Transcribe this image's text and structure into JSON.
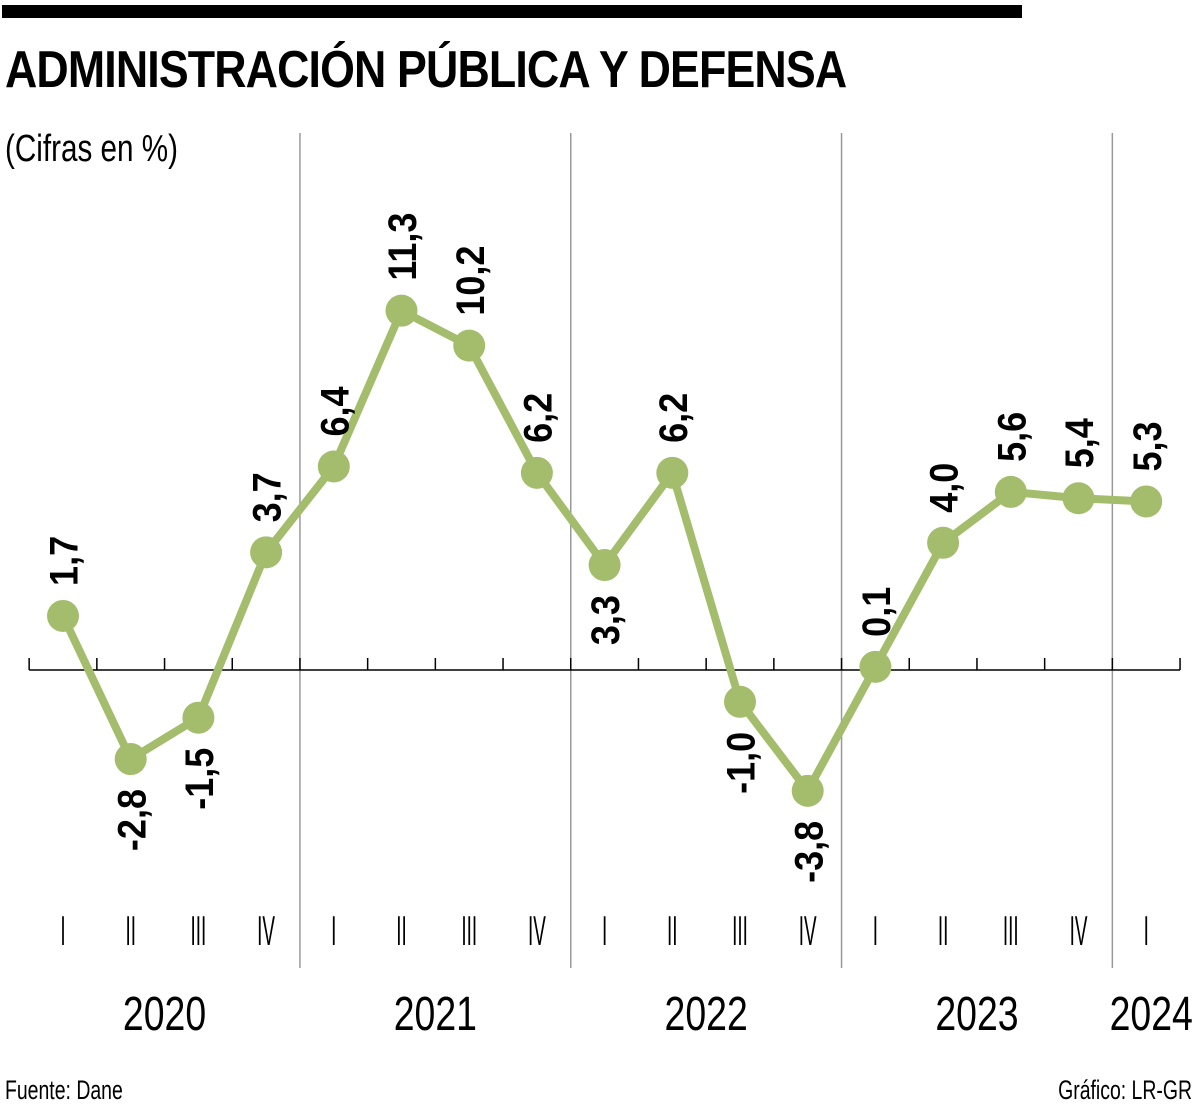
{
  "header": {
    "title": "ADMINISTRACIÓN PÚBLICA Y DEFENSA",
    "subtitle": "(Cifras en %)"
  },
  "footer": {
    "source": "Fuente: Dane",
    "credit": "Gráfico: LR-GR"
  },
  "colors": {
    "series": "#a3bd6c",
    "separator": "#999999",
    "axis": "#000000"
  },
  "chart_data": {
    "type": "line",
    "title": "ADMINISTRACIÓN PÚBLICA Y DEFENSA",
    "subtitle": "(Cifras en %)",
    "xlabel": "",
    "ylabel": "%",
    "ylim": [
      -5,
      13
    ],
    "grid": false,
    "legend": "none",
    "quarters": [
      "I",
      "II",
      "III",
      "IV",
      "I",
      "II",
      "III",
      "IV",
      "I",
      "II",
      "III",
      "IV",
      "I",
      "II",
      "III",
      "IV",
      "I"
    ],
    "years": [
      {
        "label": "2020",
        "quarters": 4
      },
      {
        "label": "2021",
        "quarters": 4
      },
      {
        "label": "2022",
        "quarters": 4
      },
      {
        "label": "2023",
        "quarters": 4
      },
      {
        "label": "2024",
        "quarters": 1
      }
    ],
    "series": [
      {
        "name": "Administración pública y defensa",
        "values": [
          1.7,
          -2.8,
          -1.5,
          3.7,
          6.4,
          11.3,
          10.2,
          6.2,
          3.3,
          6.2,
          -1.0,
          -3.8,
          0.1,
          4.0,
          5.6,
          5.4,
          5.3
        ],
        "labels": [
          "1,7",
          "-2,8",
          "-1,5",
          "3,7",
          "6,4",
          "11,3",
          "10,2",
          "6,2",
          "3,3",
          "6,2",
          "-1,0",
          "-3,8",
          "0,1",
          "4,0",
          "5,6",
          "5,4",
          "5,3"
        ],
        "label_position": [
          "above",
          "below",
          "below",
          "above",
          "above",
          "above",
          "above",
          "above",
          "below",
          "above",
          "below",
          "below",
          "above",
          "above",
          "above",
          "above",
          "above"
        ]
      }
    ]
  }
}
